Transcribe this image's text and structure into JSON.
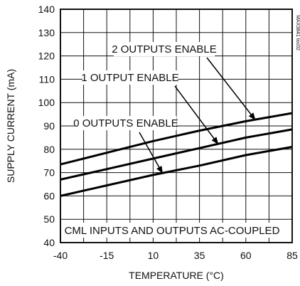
{
  "chart_data": {
    "type": "line",
    "xlabel": "TEMPERATURE (°C)",
    "ylabel": "SUPPLY CURRENT (mA)",
    "xlim": [
      -40,
      85
    ],
    "ylim": [
      40,
      140
    ],
    "xticks": [
      "-40",
      "-15",
      "10",
      "35",
      "60",
      "85"
    ],
    "yticks": [
      "40",
      "50",
      "60",
      "70",
      "80",
      "90",
      "100",
      "110",
      "120",
      "130",
      "140"
    ],
    "grid": true,
    "x": [
      -40,
      -15,
      10,
      35,
      60,
      85
    ],
    "series": [
      {
        "name": "2 OUTPUTS ENABLE",
        "values": [
          73.5,
          78.5,
          83.5,
          88,
          92,
          95.5
        ]
      },
      {
        "name": "1 OUTPUT ENABLE",
        "values": [
          67,
          71.5,
          76,
          80.5,
          85,
          88.5
        ]
      },
      {
        "name": "0 OUTPUTS ENABLE",
        "values": [
          60,
          64.5,
          69,
          73,
          77.5,
          81
        ]
      }
    ],
    "annotation": "CML INPUTS AND OUTPUTS AC-COUPLED",
    "figure_code": "MAX3841 toc02"
  }
}
